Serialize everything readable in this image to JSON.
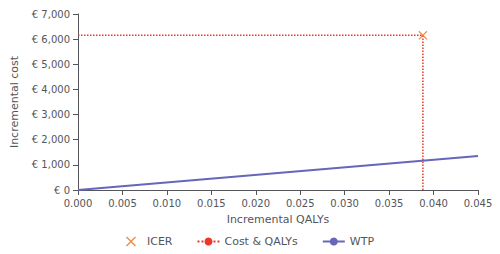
{
  "chart_data": {
    "type": "line",
    "xlabel": "Incremental QALYs",
    "ylabel": "Incremental cost",
    "xlim": [
      0.0,
      0.045
    ],
    "ylim": [
      0,
      7000
    ],
    "xticks": [
      {
        "value": 0.0,
        "label": "0.000"
      },
      0.005,
      {
        "value": 0.01,
        "label": "0.010"
      },
      0.015,
      {
        "value": 0.02,
        "label": "0.020"
      },
      0.025,
      {
        "value": 0.03,
        "label": "0.030"
      },
      0.035,
      {
        "value": 0.04,
        "label": "0.040"
      },
      0.045
    ],
    "yticks": [
      {
        "value": 0,
        "label": "€ 0"
      },
      {
        "value": 1000,
        "label": "€ 1,000"
      },
      {
        "value": 2000,
        "label": "€ 2,000"
      },
      {
        "value": 3000,
        "label": "€ 3,000"
      },
      {
        "value": 4000,
        "label": "€ 4,000"
      },
      {
        "value": 5000,
        "label": "€ 5,000"
      },
      {
        "value": 6000,
        "label": "€ 6,000"
      },
      {
        "value": 7000,
        "label": "€ 7,000"
      }
    ],
    "grid": false,
    "legend": "lower center",
    "series": [
      {
        "name": "ICER",
        "type": "scatter",
        "marker": "x",
        "color": "#e87020",
        "x": [
          0.0388
        ],
        "values": [
          6150
        ]
      },
      {
        "name": "Cost & QALYs",
        "type": "line",
        "line_style": "dotted",
        "color": "#e8392a",
        "x": [
          0.0,
          0.0388,
          0.0388
        ],
        "values": [
          6150,
          6150,
          0
        ]
      },
      {
        "name": "WTP",
        "type": "line",
        "line_style": "solid",
        "color": "#6666bb",
        "x": [
          0.0,
          0.045
        ],
        "values": [
          0,
          1350
        ]
      }
    ]
  }
}
